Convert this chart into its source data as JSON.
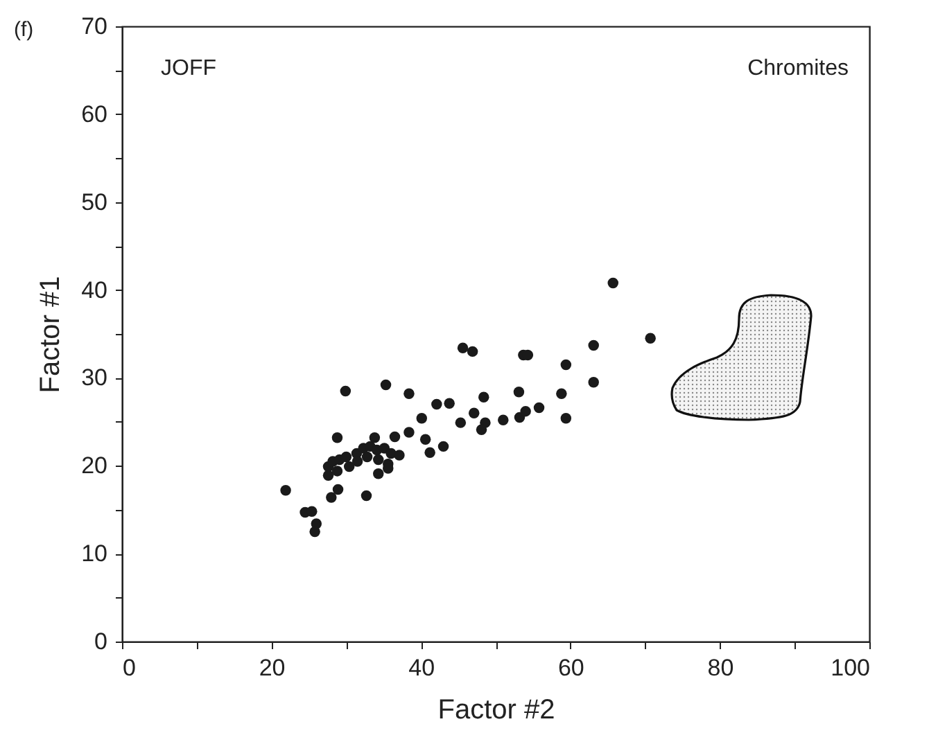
{
  "chart_data": {
    "type": "scatter",
    "xlabel": "Factor #2",
    "ylabel": "Factor #1",
    "annotations": [
      "(f)",
      "JOFF",
      "Chromites"
    ],
    "marker": "circle",
    "grid": false,
    "xlim": [
      0,
      100
    ],
    "ylim": [
      0,
      70
    ],
    "xticks": [
      0,
      {
        "value": 10,
        "label": null
      },
      20,
      {
        "value": 30,
        "label": null
      },
      40,
      {
        "value": 50,
        "label": null
      },
      60,
      {
        "value": 70,
        "label": null
      },
      80,
      {
        "value": 90,
        "label": null
      },
      100
    ],
    "yticks": [
      0,
      {
        "value": 5,
        "label": null
      },
      10,
      {
        "value": 15,
        "label": null
      },
      20,
      {
        "value": 25,
        "label": null
      },
      30,
      {
        "value": 35,
        "label": null
      },
      40,
      {
        "value": 45,
        "label": null
      },
      50,
      {
        "value": 55,
        "label": null
      },
      60,
      {
        "value": 65,
        "label": null
      },
      70
    ],
    "series": [
      {
        "color": "#1a1a1a",
        "x": [
          65.7,
          70.7,
          63.1,
          63.1,
          59.4,
          59.4,
          58.8,
          53.7,
          54.3,
          53.2,
          55.8,
          53.1,
          54.0,
          51.0,
          45.6,
          46.9,
          29.9,
          35.3,
          38.4,
          42.1,
          43.8,
          48.4,
          47.1,
          48.6,
          48.1,
          45.3,
          40.1,
          38.4,
          40.6,
          43.0,
          41.2,
          28.8,
          33.8,
          36.5,
          27.6,
          28.2,
          29.1,
          30.0,
          31.4,
          32.3,
          33.2,
          34.1,
          35.1,
          36.0,
          37.1,
          27.6,
          28.8,
          30.4,
          31.5,
          32.8,
          34.3,
          35.6,
          34.3,
          35.6,
          28.9,
          28.0,
          32.7,
          21.9,
          24.5,
          25.4,
          26.0,
          25.8
        ],
        "values": [
          40.8,
          34.5,
          33.7,
          29.5,
          31.5,
          25.4,
          28.2,
          32.6,
          32.6,
          25.5,
          26.6,
          28.4,
          26.2,
          25.2,
          33.4,
          33.0,
          28.5,
          29.2,
          28.2,
          27.0,
          27.1,
          27.8,
          26.0,
          24.9,
          24.1,
          24.9,
          25.4,
          23.8,
          23.0,
          22.2,
          21.5,
          23.2,
          23.2,
          23.3,
          19.9,
          20.5,
          20.7,
          21.0,
          21.4,
          22.0,
          22.2,
          21.8,
          22.0,
          21.4,
          21.2,
          18.9,
          19.4,
          19.9,
          20.5,
          21.0,
          20.7,
          20.2,
          19.1,
          19.7,
          17.3,
          16.4,
          16.6,
          17.2,
          14.7,
          14.8,
          13.4,
          12.5
        ]
      }
    ]
  }
}
